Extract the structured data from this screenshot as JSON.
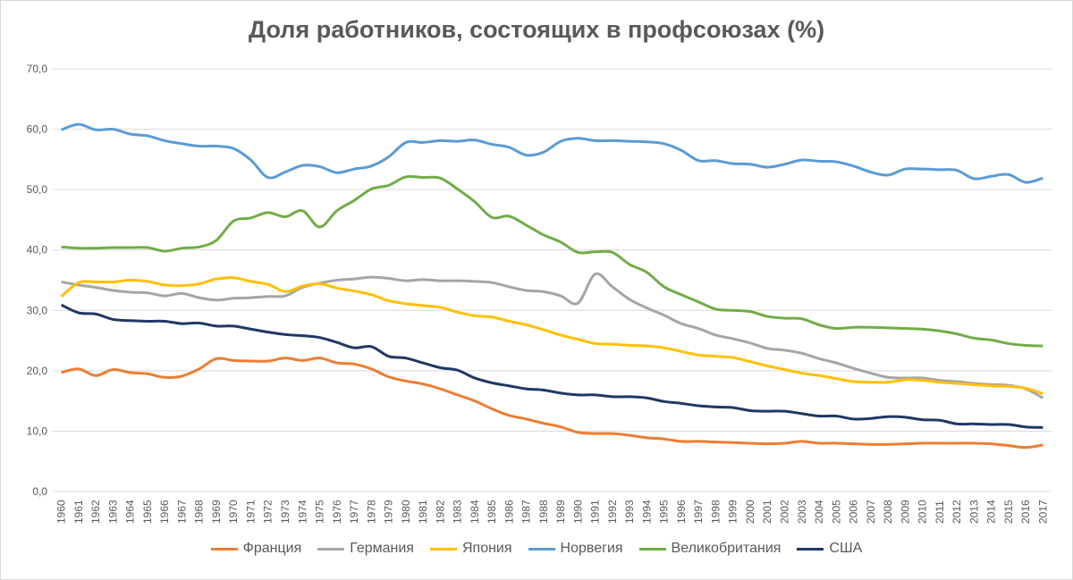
{
  "chart_data": {
    "type": "line",
    "title": "Доля работников, состоящих в профсоюзах (%)",
    "xlabel": "",
    "ylabel": "",
    "ylim": [
      0,
      70
    ],
    "y_ticks": [
      "0,0",
      "10,0",
      "20,0",
      "30,0",
      "40,0",
      "50,0",
      "60,0",
      "70,0"
    ],
    "grid": "horizontal",
    "legend_position": "bottom",
    "x": [
      "1960",
      "1961",
      "1962",
      "1963",
      "1964",
      "1965",
      "1966",
      "1967",
      "1968",
      "1969",
      "1970",
      "1971",
      "1972",
      "1973",
      "1974",
      "1975",
      "1976",
      "1977",
      "1978",
      "1979",
      "1980",
      "1981",
      "1982",
      "1983",
      "1984",
      "1985",
      "1986",
      "1987",
      "1988",
      "1989",
      "1990",
      "1991",
      "1992",
      "1993",
      "1994",
      "1995",
      "1996",
      "1997",
      "1998",
      "1999",
      "2000",
      "2001",
      "2002",
      "2003",
      "2004",
      "2005",
      "2006",
      "2007",
      "2008",
      "2009",
      "2010",
      "2011",
      "2012",
      "2013",
      "2014",
      "2015",
      "2016",
      "2017"
    ],
    "series": [
      {
        "name": "Франция",
        "color": "#ed7d31",
        "values": [
          19.7,
          20.3,
          19.2,
          20.2,
          19.7,
          19.5,
          18.9,
          19.1,
          20.3,
          22.0,
          21.7,
          21.6,
          21.6,
          22.1,
          21.7,
          22.1,
          21.3,
          21.1,
          20.3,
          19.0,
          18.3,
          17.8,
          17.0,
          16.0,
          15.0,
          13.7,
          12.6,
          12.0,
          11.3,
          10.7,
          9.8,
          9.6,
          9.6,
          9.3,
          8.9,
          8.7,
          8.3,
          8.3,
          8.2,
          8.1,
          8.0,
          7.9,
          8.0,
          8.3,
          8.0,
          8.0,
          7.9,
          7.8,
          7.8,
          7.9,
          8.0,
          8.0,
          8.0,
          8.0,
          7.9,
          7.6,
          7.3,
          7.7
        ]
      },
      {
        "name": "Германия",
        "color": "#a5a5a5",
        "values": [
          34.7,
          34.2,
          33.8,
          33.3,
          33.0,
          32.9,
          32.4,
          32.8,
          32.1,
          31.7,
          32.0,
          32.1,
          32.3,
          32.4,
          33.8,
          34.5,
          35.0,
          35.2,
          35.5,
          35.3,
          34.9,
          35.1,
          34.9,
          34.9,
          34.8,
          34.6,
          33.9,
          33.3,
          33.1,
          32.4,
          31.2,
          36.0,
          33.9,
          31.8,
          30.4,
          29.2,
          27.8,
          27.0,
          25.9,
          25.3,
          24.6,
          23.7,
          23.4,
          22.9,
          22.0,
          21.3,
          20.4,
          19.6,
          18.9,
          18.8,
          18.8,
          18.4,
          18.2,
          17.9,
          17.7,
          17.6,
          17.0,
          15.5
        ]
      },
      {
        "name": "Япония",
        "color": "#ffc000",
        "values": [
          32.3,
          34.6,
          34.7,
          34.7,
          35.0,
          34.8,
          34.2,
          34.1,
          34.4,
          35.2,
          35.4,
          34.8,
          34.3,
          33.1,
          34.0,
          34.4,
          33.7,
          33.2,
          32.6,
          31.6,
          31.1,
          30.8,
          30.5,
          29.7,
          29.1,
          28.9,
          28.2,
          27.6,
          26.8,
          25.9,
          25.2,
          24.5,
          24.4,
          24.2,
          24.1,
          23.8,
          23.2,
          22.6,
          22.4,
          22.2,
          21.5,
          20.8,
          20.2,
          19.6,
          19.2,
          18.7,
          18.2,
          18.1,
          18.1,
          18.5,
          18.4,
          18.1,
          17.9,
          17.7,
          17.5,
          17.4,
          17.1,
          16.2
        ]
      },
      {
        "name": "Норвегия",
        "color": "#5b9bd5",
        "values": [
          59.9,
          60.8,
          59.9,
          60.0,
          59.2,
          58.9,
          58.1,
          57.6,
          57.2,
          57.2,
          56.8,
          54.9,
          52.0,
          52.9,
          54.0,
          53.8,
          52.8,
          53.4,
          53.9,
          55.4,
          57.8,
          57.8,
          58.1,
          58.0,
          58.2,
          57.5,
          57.0,
          55.7,
          56.2,
          58.0,
          58.5,
          58.1,
          58.1,
          58.0,
          57.9,
          57.6,
          56.5,
          54.8,
          54.8,
          54.3,
          54.2,
          53.7,
          54.2,
          54.9,
          54.7,
          54.6,
          53.9,
          52.9,
          52.4,
          53.4,
          53.4,
          53.3,
          53.2,
          51.8,
          52.2,
          52.5,
          51.2,
          51.9
        ]
      },
      {
        "name": "Великобритания",
        "color": "#70ad47",
        "values": [
          40.5,
          40.3,
          40.3,
          40.4,
          40.4,
          40.4,
          39.8,
          40.3,
          40.5,
          41.6,
          44.8,
          45.3,
          46.2,
          45.5,
          46.5,
          43.8,
          46.5,
          48.2,
          50.1,
          50.7,
          52.1,
          52.0,
          51.9,
          50.1,
          48.0,
          45.4,
          45.6,
          44.1,
          42.5,
          41.3,
          39.6,
          39.7,
          39.6,
          37.6,
          36.3,
          33.9,
          32.6,
          31.4,
          30.2,
          30.0,
          29.8,
          29.0,
          28.7,
          28.6,
          27.6,
          27.0,
          27.2,
          27.2,
          27.1,
          27.0,
          26.9,
          26.6,
          26.1,
          25.4,
          25.1,
          24.5,
          24.2,
          24.1
        ]
      },
      {
        "name": "США",
        "color": "#1f3864",
        "values": [
          30.9,
          29.6,
          29.4,
          28.5,
          28.3,
          28.2,
          28.2,
          27.8,
          27.9,
          27.4,
          27.4,
          26.9,
          26.4,
          26.0,
          25.8,
          25.5,
          24.7,
          23.8,
          24.0,
          22.4,
          22.1,
          21.3,
          20.5,
          20.1,
          18.8,
          18.0,
          17.5,
          17.0,
          16.8,
          16.3,
          16.0,
          16.0,
          15.7,
          15.7,
          15.5,
          14.9,
          14.6,
          14.2,
          14.0,
          13.9,
          13.4,
          13.3,
          13.3,
          12.9,
          12.5,
          12.5,
          12.0,
          12.1,
          12.4,
          12.3,
          11.9,
          11.8,
          11.2,
          11.2,
          11.1,
          11.1,
          10.7,
          10.6
        ]
      }
    ]
  }
}
